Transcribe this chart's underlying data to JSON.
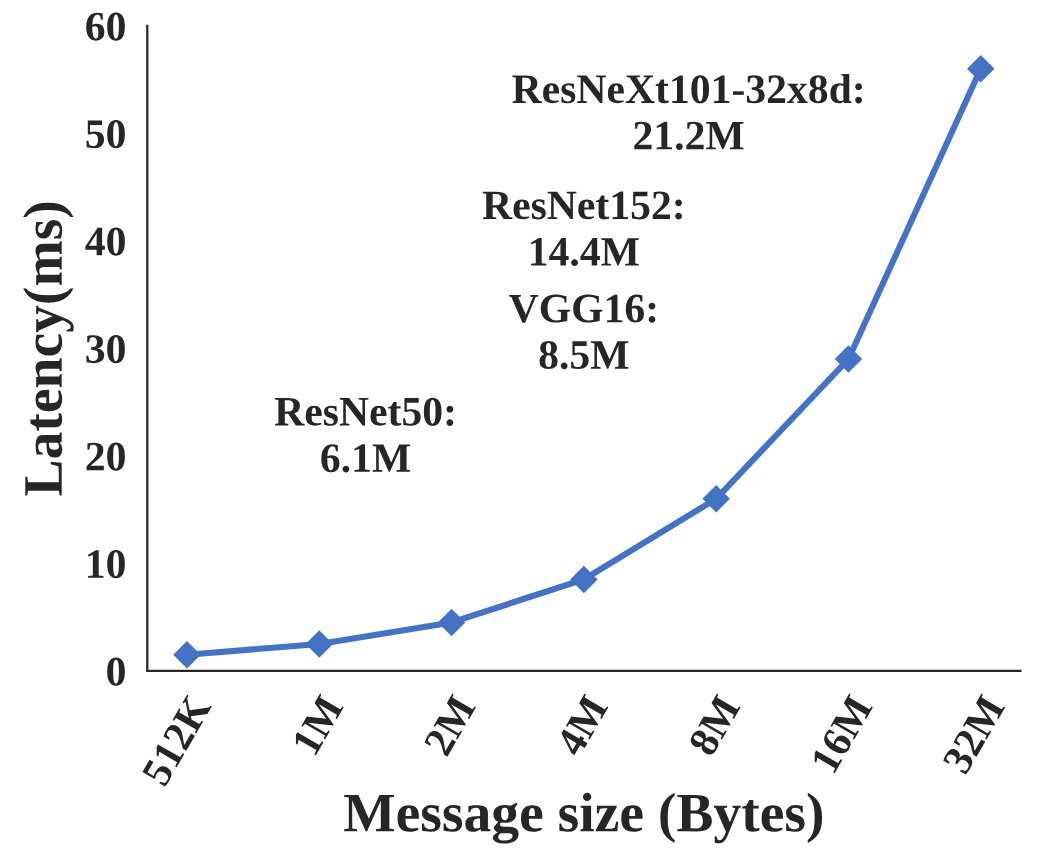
{
  "chart_data": {
    "type": "line",
    "xlabel": "Message size (Bytes)",
    "ylabel": "Latency(ms)",
    "categories": [
      "512K",
      "1M",
      "2M",
      "4M",
      "8M",
      "16M",
      "32M"
    ],
    "series": [
      {
        "color": "#4472c4",
        "values": [
          1.5,
          2.5,
          4.5,
          8.5,
          16,
          29,
          56
        ]
      }
    ],
    "ylim": [
      0,
      60
    ],
    "yticks": [
      0,
      10,
      20,
      30,
      40,
      50,
      60
    ],
    "marker": "diamond",
    "line_style": "solid",
    "grid": false,
    "legend": false,
    "annotations": [
      "ResNeXt101-32x8d:\n21.2M",
      "ResNet152:\n14.4M",
      "VGG16:\n8.5M",
      "ResNet50:\n6.1M"
    ]
  }
}
